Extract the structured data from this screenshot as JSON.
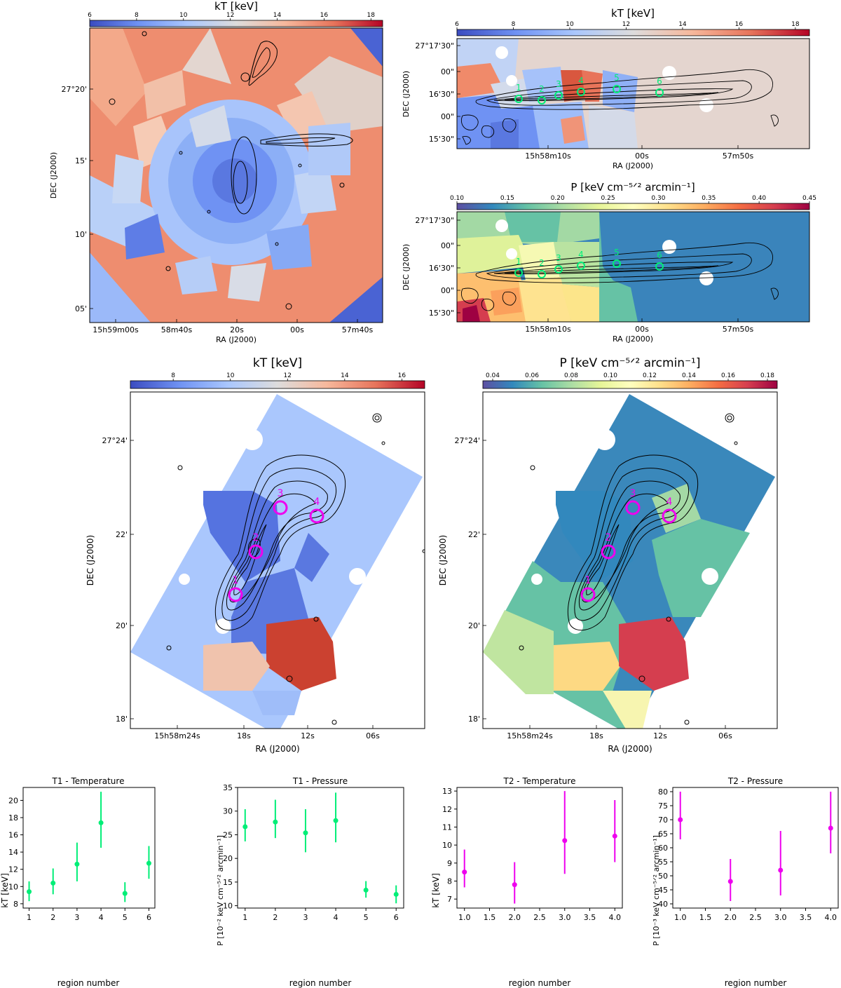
{
  "colors": {
    "coolwarm": [
      "#3b4cc0",
      "#6f92f3",
      "#aac7fd",
      "#dddcdc",
      "#f7b89c",
      "#e7745b",
      "#b40426"
    ],
    "spectral": [
      "#5e4fa2",
      "#3288bd",
      "#66c2a5",
      "#abdda4",
      "#e6f598",
      "#ffffbf",
      "#fee08b",
      "#fdae61",
      "#f46d43",
      "#d53e4f",
      "#9e0142"
    ],
    "green_marker": "#00ee77",
    "magenta_marker": "#ee00ee"
  },
  "map_panels": [
    {
      "id": "kt-overview",
      "cbar_label": "kT [keV]",
      "cbar_ticks": [
        "6",
        "8",
        "10",
        "12",
        "14",
        "16",
        "18"
      ],
      "cbar_range": [
        6,
        18.5
      ],
      "y_label": "DEC (J2000)",
      "x_label": "RA (J2000)",
      "y_ticks": [
        "27°20'",
        "15'",
        "10'",
        "05'"
      ],
      "x_ticks": [
        "15h59m00s",
        "58m40s",
        "20s",
        "00s",
        "57m40s"
      ],
      "regions": []
    },
    {
      "id": "kt-t1",
      "cbar_label": "kT [keV]",
      "cbar_ticks": [
        "6",
        "8",
        "10",
        "12",
        "14",
        "16",
        "18"
      ],
      "cbar_range": [
        6,
        18.5
      ],
      "y_label": "DEC (J2000)",
      "x_label": "RA (J2000)",
      "y_ticks": [
        "27°17'30\"",
        "00\"",
        "16'30\"",
        "00\"",
        "15'30\""
      ],
      "x_ticks": [
        "15h58m10s",
        "00s",
        "57m50s"
      ],
      "regions": [
        "1",
        "2",
        "3",
        "4",
        "5",
        "6"
      ]
    },
    {
      "id": "p-t1",
      "cbar_label": "P [keV cm⁻⁵ᐟ² arcmin⁻¹]",
      "cbar_ticks": [
        "0.10",
        "0.15",
        "0.20",
        "0.25",
        "0.30",
        "0.35",
        "0.40",
        "0.45"
      ],
      "cbar_range": [
        0.1,
        0.45
      ],
      "y_label": "DEC (J2000)",
      "x_label": "RA (J2000)",
      "y_ticks": [
        "27°17'30\"",
        "00\"",
        "16'30\"",
        "00\"",
        "15'30\""
      ],
      "x_ticks": [
        "15h58m10s",
        "00s",
        "57m50s"
      ],
      "regions": [
        "1",
        "2",
        "3",
        "4",
        "5",
        "6"
      ]
    },
    {
      "id": "kt-t2",
      "cbar_label": "kT [keV]",
      "cbar_ticks": [
        "8",
        "10",
        "12",
        "14",
        "16"
      ],
      "cbar_range": [
        6.5,
        16.8
      ],
      "y_label": "DEC (J2000)",
      "x_label": "RA (J2000)",
      "y_ticks": [
        "27°24'",
        "22'",
        "20'",
        "18'"
      ],
      "x_ticks": [
        "15h58m24s",
        "18s",
        "12s",
        "06s"
      ],
      "regions": [
        "1",
        "2",
        "3",
        "4"
      ]
    },
    {
      "id": "p-t2",
      "cbar_label": "P [keV cm⁻⁵ᐟ² arcmin⁻¹]",
      "cbar_ticks": [
        "0.04",
        "0.06",
        "0.08",
        "0.10",
        "0.12",
        "0.14",
        "0.16",
        "0.18"
      ],
      "cbar_range": [
        0.035,
        0.185
      ],
      "y_label": "DEC (J2000)",
      "x_label": "RA (J2000)",
      "y_ticks": [
        "27°24'",
        "22'",
        "20'",
        "18'"
      ],
      "x_ticks": [
        "15h58m24s",
        "18s",
        "12s",
        "06s"
      ],
      "regions": [
        "1",
        "2",
        "3",
        "4"
      ]
    }
  ],
  "chart_data": [
    {
      "type": "scatter",
      "title": "T1 - Temperature",
      "xlabel": "region number",
      "ylabel": "kT [keV]",
      "color": "#00ee77",
      "x": [
        1,
        2,
        3,
        4,
        5,
        6
      ],
      "y": [
        9.4,
        10.4,
        12.6,
        17.4,
        9.2,
        12.7
      ],
      "yerr_low": [
        8.3,
        9.1,
        10.6,
        14.5,
        8.2,
        10.9
      ],
      "yerr_high": [
        10.6,
        12.1,
        15.1,
        21.0,
        10.5,
        14.7
      ],
      "xlim": [
        0.75,
        6.25
      ],
      "ylim": [
        7.5,
        21.5
      ],
      "xticks": [
        "1",
        "2",
        "3",
        "4",
        "5",
        "6"
      ],
      "xtick_values": [
        1,
        2,
        3,
        4,
        5,
        6
      ],
      "yticks": [
        "8",
        "10",
        "12",
        "14",
        "16",
        "18",
        "20"
      ],
      "ytick_values": [
        8,
        10,
        12,
        14,
        16,
        18,
        20
      ]
    },
    {
      "type": "scatter",
      "title": "T1 - Pressure",
      "xlabel": "region number",
      "ylabel": "P [10⁻² keV cm⁻⁵ᐟ² arcmin⁻¹]",
      "color": "#00ee77",
      "x": [
        1,
        2,
        3,
        4,
        5,
        6
      ],
      "y": [
        26.7,
        27.7,
        25.4,
        28.0,
        13.3,
        12.4
      ],
      "yerr_low": [
        23.6,
        24.3,
        21.3,
        23.4,
        11.7,
        10.5
      ],
      "yerr_high": [
        30.4,
        32.4,
        30.4,
        33.9,
        15.2,
        14.3
      ],
      "xlim": [
        0.75,
        6.25
      ],
      "ylim": [
        9.5,
        35
      ],
      "xticks": [
        "1",
        "2",
        "3",
        "4",
        "5",
        "6"
      ],
      "xtick_values": [
        1,
        2,
        3,
        4,
        5,
        6
      ],
      "yticks": [
        "10",
        "15",
        "20",
        "25",
        "30",
        "35"
      ],
      "ytick_values": [
        10,
        15,
        20,
        25,
        30,
        35
      ]
    },
    {
      "type": "scatter",
      "title": "T2 - Temperature",
      "xlabel": "region number",
      "ylabel": "kT [keV]",
      "color": "#ee00ee",
      "x": [
        1,
        2,
        3,
        4
      ],
      "y": [
        8.5,
        7.8,
        10.25,
        10.5
      ],
      "yerr_low": [
        7.65,
        6.75,
        8.4,
        9.05
      ],
      "yerr_high": [
        9.75,
        9.05,
        13.0,
        12.5
      ],
      "xlim": [
        0.85,
        4.15
      ],
      "ylim": [
        6.5,
        13.2
      ],
      "xticks": [
        "1.0",
        "1.5",
        "2.0",
        "2.5",
        "3.0",
        "3.5",
        "4.0"
      ],
      "xtick_values": [
        1.0,
        1.5,
        2.0,
        2.5,
        3.0,
        3.5,
        4.0
      ],
      "yticks": [
        "7",
        "8",
        "9",
        "10",
        "11",
        "12",
        "13"
      ],
      "ytick_values": [
        7,
        8,
        9,
        10,
        11,
        12,
        13
      ]
    },
    {
      "type": "scatter",
      "title": "T2 - Pressure",
      "xlabel": "region number",
      "ylabel": "P [10⁻³ keV cm⁻⁵ᐟ² arcmin⁻¹]",
      "color": "#ee00ee",
      "x": [
        1,
        2,
        3,
        4
      ],
      "y": [
        70,
        48,
        52,
        67
      ],
      "yerr_low": [
        63,
        41,
        43,
        58
      ],
      "yerr_high": [
        80,
        56,
        66,
        80
      ],
      "xlim": [
        0.85,
        4.15
      ],
      "ylim": [
        38.5,
        81.5
      ],
      "xticks": [
        "1.0",
        "1.5",
        "2.0",
        "2.5",
        "3.0",
        "3.5",
        "4.0"
      ],
      "xtick_values": [
        1.0,
        1.5,
        2.0,
        2.5,
        3.0,
        3.5,
        4.0
      ],
      "yticks": [
        "40",
        "45",
        "50",
        "55",
        "60",
        "65",
        "70",
        "75",
        "80"
      ],
      "ytick_values": [
        40,
        45,
        50,
        55,
        60,
        65,
        70,
        75,
        80
      ]
    }
  ]
}
